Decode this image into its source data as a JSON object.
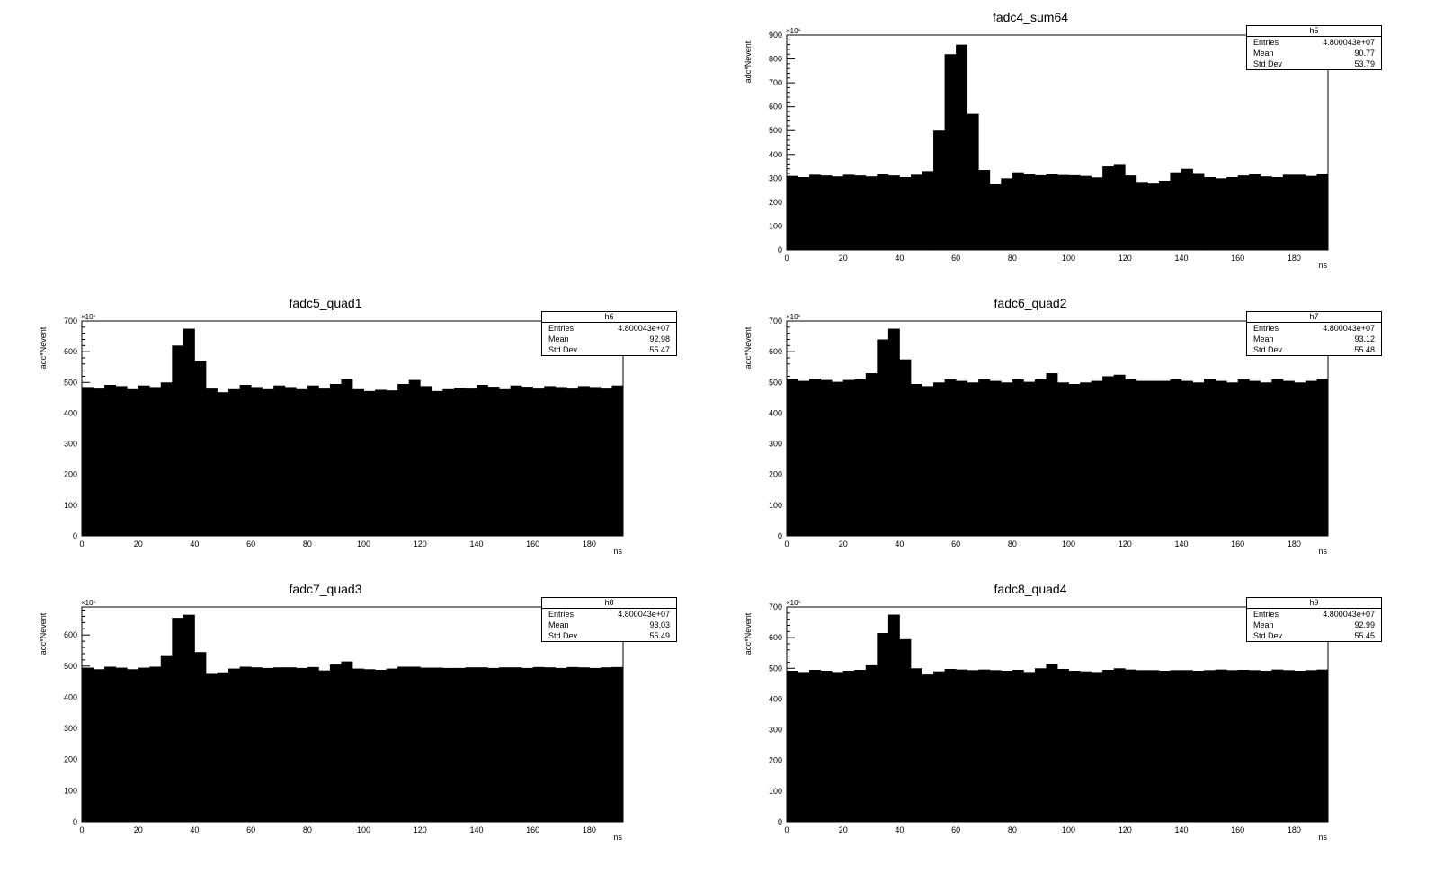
{
  "chart_data": [
    {
      "type": "bar",
      "title": "fadc4_sum64",
      "xlabel": "ns",
      "ylabel": "adc*Nevent",
      "exponent": "×10⁶",
      "xlim": [
        0,
        192
      ],
      "ylim": [
        0,
        900
      ],
      "xticks": [
        0,
        20,
        40,
        60,
        80,
        100,
        120,
        140,
        160,
        180
      ],
      "yticks": [
        0,
        100,
        200,
        300,
        400,
        500,
        600,
        700,
        800,
        900
      ],
      "bin_width": 4,
      "values": [
        310,
        305,
        315,
        312,
        308,
        315,
        312,
        308,
        318,
        312,
        305,
        315,
        330,
        500,
        820,
        860,
        570,
        335,
        275,
        300,
        325,
        318,
        313,
        320,
        314,
        313,
        310,
        304,
        350,
        360,
        312,
        285,
        278,
        290,
        325,
        340,
        322,
        305,
        300,
        305,
        312,
        318,
        308,
        305,
        315,
        315,
        310,
        320
      ],
      "stats": {
        "name": "h5",
        "entries_label": "Entries",
        "entries": "4.800043e+07",
        "mean_label": "Mean",
        "mean": "90.77",
        "std_label": "Std Dev",
        "std": "53.79"
      }
    },
    {
      "type": "bar",
      "title": "fadc5_quad1",
      "xlabel": "ns",
      "ylabel": "adc*Nevent",
      "exponent": "×10⁶",
      "xlim": [
        0,
        192
      ],
      "ylim": [
        0,
        700
      ],
      "xticks": [
        0,
        20,
        40,
        60,
        80,
        100,
        120,
        140,
        160,
        180
      ],
      "yticks": [
        0,
        100,
        200,
        300,
        400,
        500,
        600,
        700
      ],
      "bin_width": 4,
      "values": [
        485,
        480,
        492,
        488,
        478,
        490,
        485,
        500,
        620,
        675,
        570,
        480,
        468,
        478,
        492,
        485,
        478,
        490,
        485,
        478,
        490,
        480,
        495,
        510,
        478,
        472,
        476,
        474,
        495,
        508,
        488,
        472,
        478,
        482,
        480,
        492,
        486,
        478,
        490,
        486,
        480,
        488,
        485,
        480,
        488,
        485,
        480,
        490
      ],
      "stats": {
        "name": "h6",
        "entries_label": "Entries",
        "entries": "4.800043e+07",
        "mean_label": "Mean",
        "mean": "92.98",
        "std_label": "Std Dev",
        "std": "55.47"
      }
    },
    {
      "type": "bar",
      "title": "fadc6_quad2",
      "xlabel": "ns",
      "ylabel": "adc*Nevent",
      "exponent": "×10⁶",
      "xlim": [
        0,
        192
      ],
      "ylim": [
        0,
        700
      ],
      "xticks": [
        0,
        20,
        40,
        60,
        80,
        100,
        120,
        140,
        160,
        180
      ],
      "yticks": [
        0,
        100,
        200,
        300,
        400,
        500,
        600,
        700
      ],
      "bin_width": 4,
      "values": [
        510,
        505,
        512,
        508,
        502,
        508,
        510,
        530,
        640,
        675,
        575,
        495,
        488,
        500,
        510,
        505,
        500,
        510,
        505,
        500,
        510,
        502,
        510,
        530,
        500,
        495,
        500,
        505,
        520,
        525,
        510,
        505,
        505,
        505,
        510,
        505,
        500,
        512,
        505,
        500,
        510,
        505,
        500,
        510,
        505,
        500,
        505,
        512
      ],
      "stats": {
        "name": "h7",
        "entries_label": "Entries",
        "entries": "4.800043e+07",
        "mean_label": "Mean",
        "mean": "93.12",
        "std_label": "Std Dev",
        "std": "55.48"
      }
    },
    {
      "type": "bar",
      "title": "fadc7_quad3",
      "xlabel": "ns",
      "ylabel": "adc*Nevent",
      "exponent": "×10⁶",
      "xlim": [
        0,
        192
      ],
      "ylim": [
        0,
        690
      ],
      "xticks": [
        0,
        20,
        40,
        60,
        80,
        100,
        120,
        140,
        160,
        180
      ],
      "yticks": [
        0,
        100,
        200,
        300,
        400,
        500,
        600
      ],
      "bin_width": 4,
      "values": [
        495,
        490,
        498,
        495,
        490,
        495,
        498,
        535,
        655,
        665,
        545,
        475,
        480,
        492,
        498,
        496,
        494,
        496,
        496,
        494,
        497,
        486,
        505,
        515,
        492,
        490,
        488,
        492,
        498,
        498,
        495,
        495,
        494,
        494,
        496,
        496,
        494,
        496,
        496,
        494,
        497,
        496,
        494,
        497,
        496,
        494,
        496,
        497
      ],
      "stats": {
        "name": "h8",
        "entries_label": "Entries",
        "entries": "4.800043e+07",
        "mean_label": "Mean",
        "mean": "93.03",
        "std_label": "Std Dev",
        "std": "55.49"
      }
    },
    {
      "type": "bar",
      "title": "fadc8_quad4",
      "xlabel": "ns",
      "ylabel": "adc*Nevent",
      "exponent": "×10⁶",
      "xlim": [
        0,
        192
      ],
      "ylim": [
        0,
        700
      ],
      "xticks": [
        0,
        20,
        40,
        60,
        80,
        100,
        120,
        140,
        160,
        180
      ],
      "yticks": [
        0,
        100,
        200,
        300,
        400,
        500,
        600,
        700
      ],
      "bin_width": 4,
      "values": [
        492,
        488,
        495,
        492,
        488,
        492,
        495,
        510,
        615,
        675,
        595,
        500,
        480,
        490,
        498,
        496,
        494,
        496,
        494,
        492,
        495,
        488,
        500,
        515,
        498,
        492,
        490,
        488,
        495,
        500,
        496,
        494,
        494,
        492,
        494,
        494,
        492,
        494,
        496,
        494,
        495,
        494,
        492,
        496,
        494,
        492,
        494,
        496
      ],
      "stats": {
        "name": "h9",
        "entries_label": "Entries",
        "entries": "4.800043e+07",
        "mean_label": "Mean",
        "mean": "92.99",
        "std_label": "Std Dev",
        "std": "55.45"
      }
    }
  ]
}
